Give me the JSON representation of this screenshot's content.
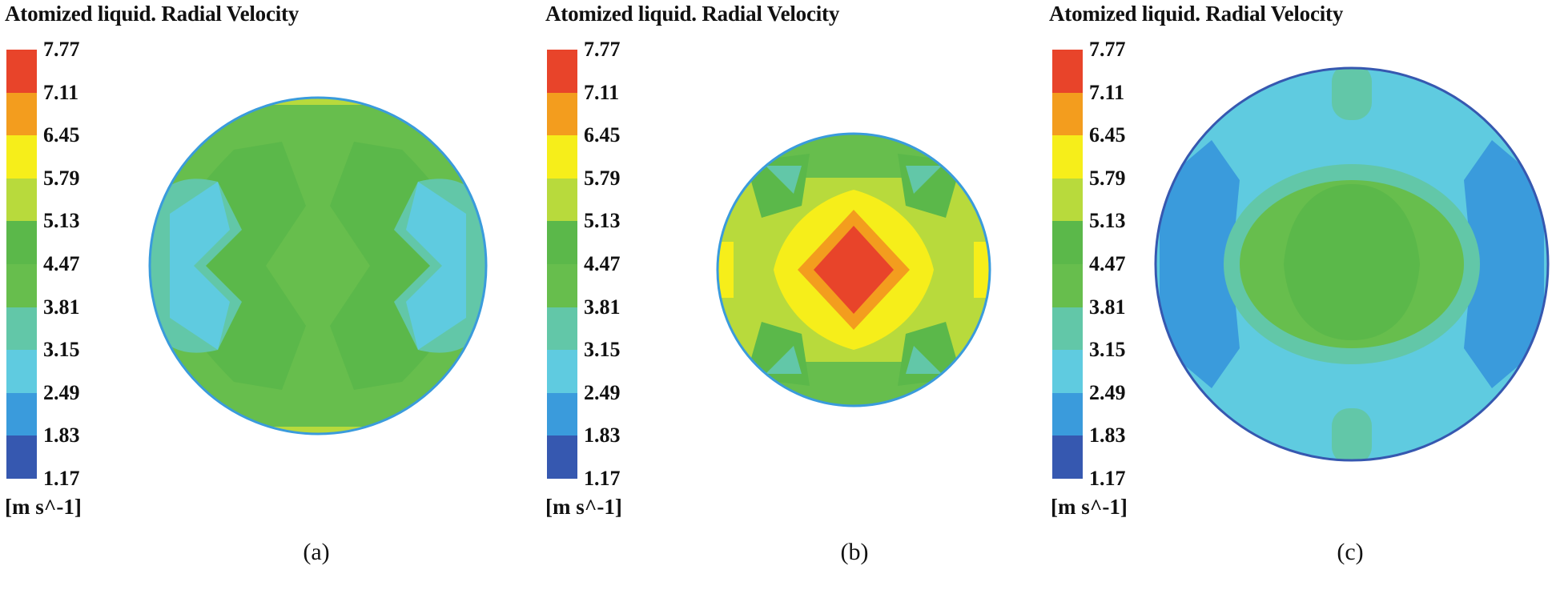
{
  "colorbar": {
    "ticks": [
      "7.77",
      "7.11",
      "6.45",
      "5.79",
      "5.13",
      "4.47",
      "3.81",
      "3.15",
      "2.49",
      "1.83",
      "1.17"
    ],
    "unit": "[m s^-1]",
    "colors": [
      "#e8442a",
      "#f39d1e",
      "#f6ee1a",
      "#b8da3c",
      "#5bb84a",
      "#67be4d",
      "#62c7a8",
      "#5fcbe0",
      "#3a9bdc",
      "#3658b0"
    ]
  },
  "panels": [
    {
      "title": "Atomized liquid. Radial Velocity",
      "caption": "(a)"
    },
    {
      "title": "Atomized liquid. Radial Velocity",
      "caption": "(b)"
    },
    {
      "title": "Atomized liquid. Radial Velocity",
      "caption": "(c)"
    }
  ]
}
